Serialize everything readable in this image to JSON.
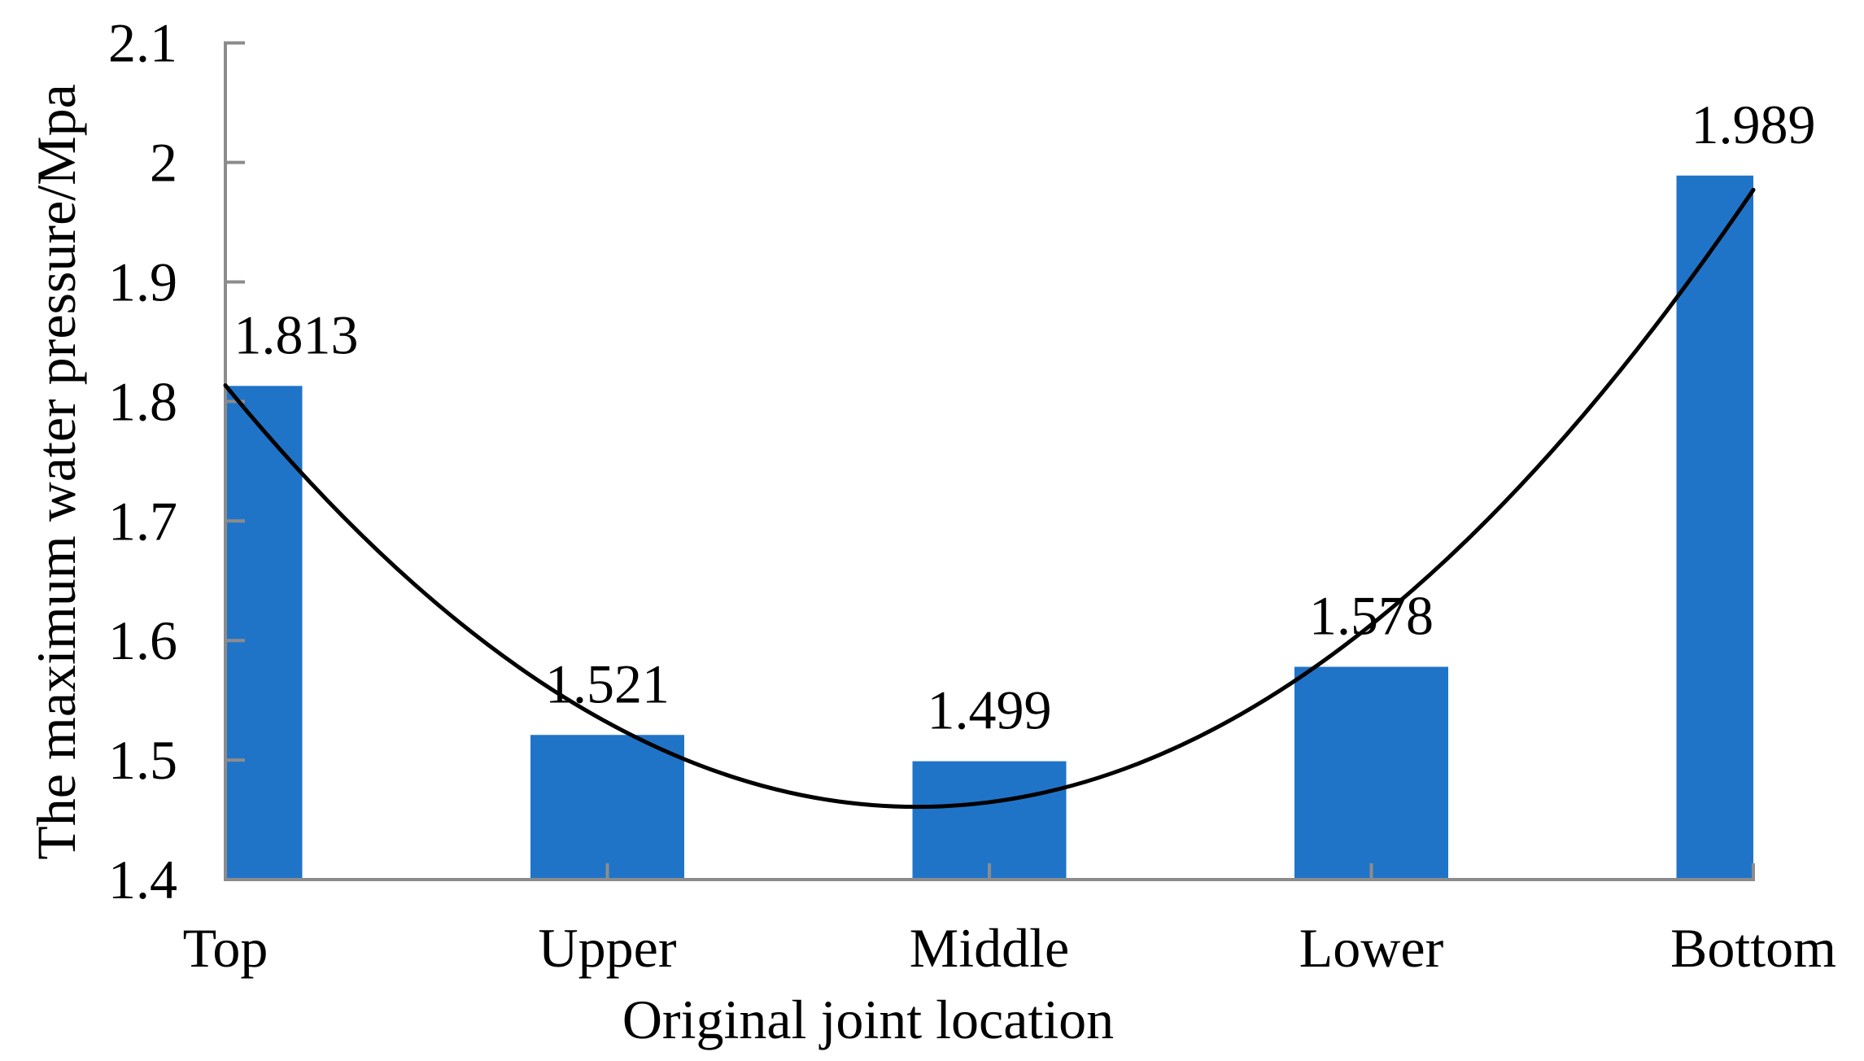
{
  "chart_data": {
    "type": "bar",
    "categories": [
      "Top",
      "Upper",
      "Middle",
      "Lower",
      "Bottom"
    ],
    "values": [
      1.813,
      1.521,
      1.499,
      1.578,
      1.989
    ],
    "data_labels": [
      "1.813",
      "1.521",
      "1.499",
      "1.578",
      "1.989"
    ],
    "title": "",
    "xlabel": "Original joint location",
    "ylabel": "The maximum water pressure/Mpa",
    "ylim": [
      1.4,
      2.1
    ],
    "y_tick_labels": [
      "1.4",
      "1.5",
      "1.6",
      "1.7",
      "1.8",
      "1.9",
      "2",
      "2.1"
    ],
    "y_tick_values": [
      1.4,
      1.5,
      1.6,
      1.7,
      1.8,
      1.9,
      2.0,
      2.1
    ],
    "grid": "off",
    "legend": "none",
    "trendline": {
      "type": "polynomial",
      "order": 2,
      "color": "#000000"
    },
    "colors": {
      "bar": "#2074C8",
      "axis": "#8C8C8C",
      "trendline": "#000000",
      "text": "#000000"
    }
  }
}
